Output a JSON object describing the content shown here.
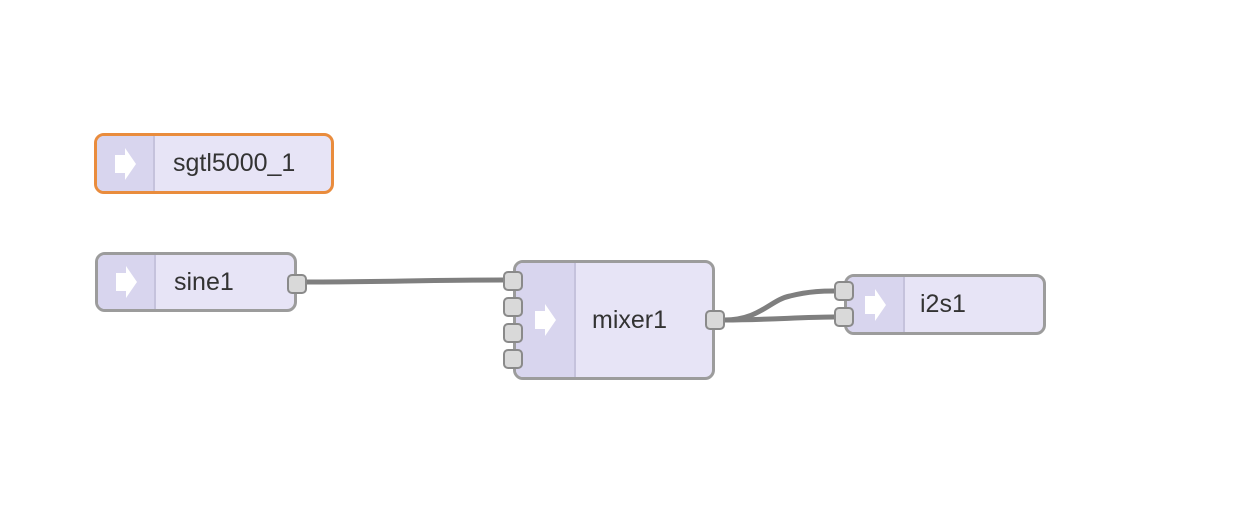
{
  "colors": {
    "node_fill": "#e7e4f6",
    "node_border": "#9c9c9c",
    "selected_border": "#e98c3d",
    "icon_strip": "#d8d5ee",
    "wire": "#7f7f7f",
    "port_fill": "#d9d9d9"
  },
  "nodes": {
    "sgtl5000": {
      "label": "sgtl5000_1",
      "icon": "arrow-right-icon",
      "selected": true
    },
    "sine1": {
      "label": "sine1",
      "icon": "arrow-right-icon",
      "selected": false
    },
    "mixer1": {
      "label": "mixer1",
      "icon": "arrow-right-icon",
      "selected": false
    },
    "i2s1": {
      "label": "i2s1",
      "icon": "arrow-right-icon",
      "selected": false
    }
  },
  "connections": [
    {
      "from": "sine1",
      "from_port": 0,
      "to": "mixer1",
      "to_port": 0
    },
    {
      "from": "mixer1",
      "from_port": 0,
      "to": "i2s1",
      "to_port": 0
    },
    {
      "from": "mixer1",
      "from_port": 0,
      "to": "i2s1",
      "to_port": 1
    }
  ]
}
